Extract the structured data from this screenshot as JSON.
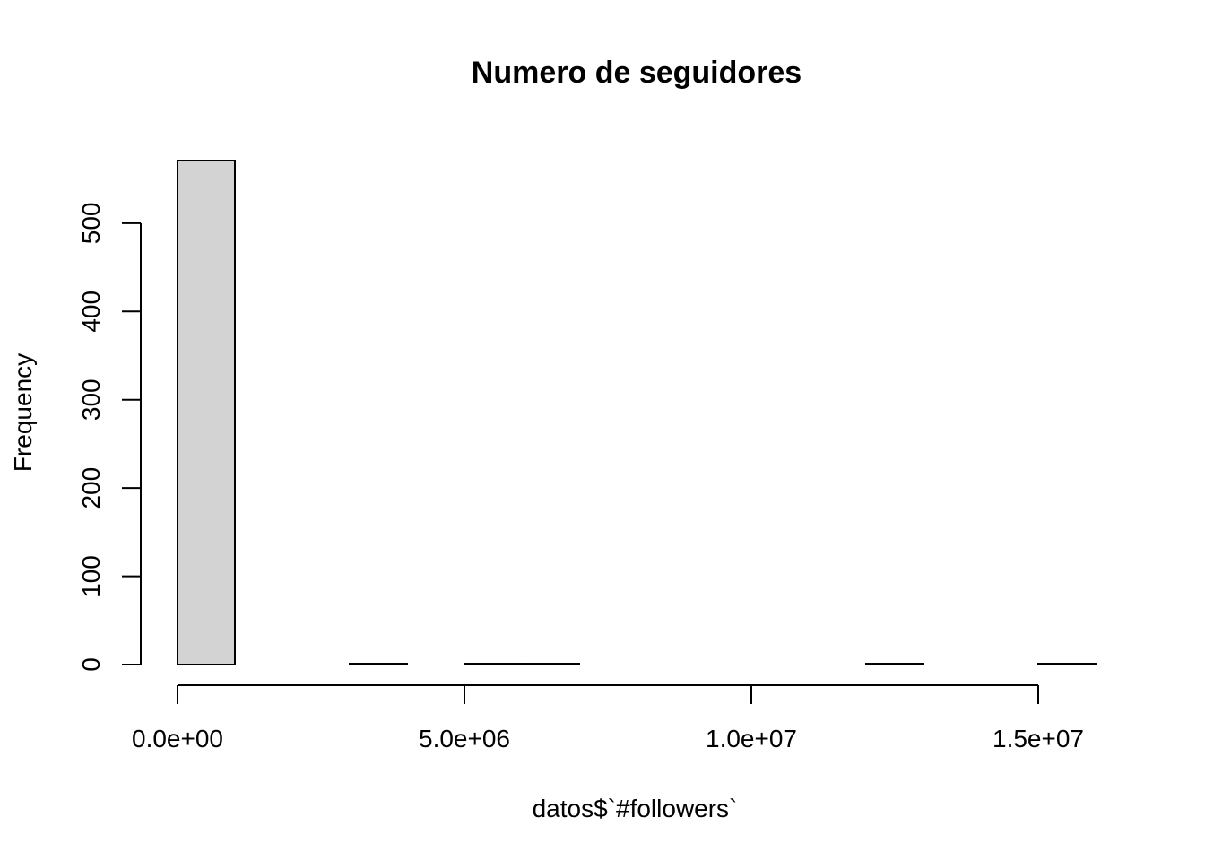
{
  "chart_data": {
    "type": "bar",
    "title": "Numero de seguidores",
    "xlabel": "datos$`#followers`",
    "ylabel": "Frequency",
    "bin_width": 1000000,
    "bin_starts": [
      0,
      1000000,
      2000000,
      3000000,
      4000000,
      5000000,
      6000000,
      7000000,
      8000000,
      9000000,
      10000000,
      11000000,
      12000000,
      13000000,
      14000000,
      15000000
    ],
    "values": [
      571,
      0,
      0,
      1,
      0,
      1,
      1,
      0,
      0,
      0,
      0,
      0,
      1,
      0,
      0,
      1
    ],
    "xlim": [
      0,
      16000000
    ],
    "ylim": [
      0,
      571
    ],
    "x_ticks": [
      0,
      5000000,
      10000000,
      15000000
    ],
    "x_tick_labels": [
      "0.0e+00",
      "5.0e+06",
      "1.0e+07",
      "1.5e+07"
    ],
    "y_ticks": [
      0,
      100,
      200,
      300,
      400,
      500
    ],
    "y_tick_labels": [
      "0",
      "100",
      "200",
      "300",
      "400",
      "500"
    ],
    "grid": false,
    "colors": {
      "bar_fill": "#d3d3d3",
      "bar_stroke": "#000000",
      "axis": "#000000",
      "text": "#000000",
      "background": "#ffffff"
    }
  }
}
